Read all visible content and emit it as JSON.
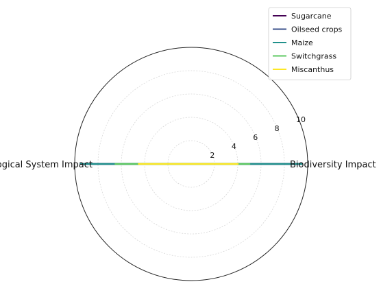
{
  "chart_data": {
    "type": "radar",
    "title": "",
    "categories": [
      "Biodiversity Impact",
      "Ecological System Impact"
    ],
    "r_ticks": [
      2,
      4,
      6,
      8,
      10
    ],
    "r_max": 10,
    "grid": true,
    "legend_position": "top-right",
    "series": [
      {
        "name": "Sugarcane",
        "values": [
          9.5,
          9.5
        ],
        "color": "#440154"
      },
      {
        "name": "Oilseed crops",
        "values": [
          9.5,
          9.5
        ],
        "color": "#3b528b"
      },
      {
        "name": "Maize",
        "values": [
          9.5,
          9.5
        ],
        "color": "#21918c"
      },
      {
        "name": "Switchgrass",
        "values": [
          5.0,
          6.5
        ],
        "color": "#5ec962"
      },
      {
        "name": "Miscanthus",
        "values": [
          4.0,
          4.5
        ],
        "color": "#fde725"
      }
    ]
  }
}
